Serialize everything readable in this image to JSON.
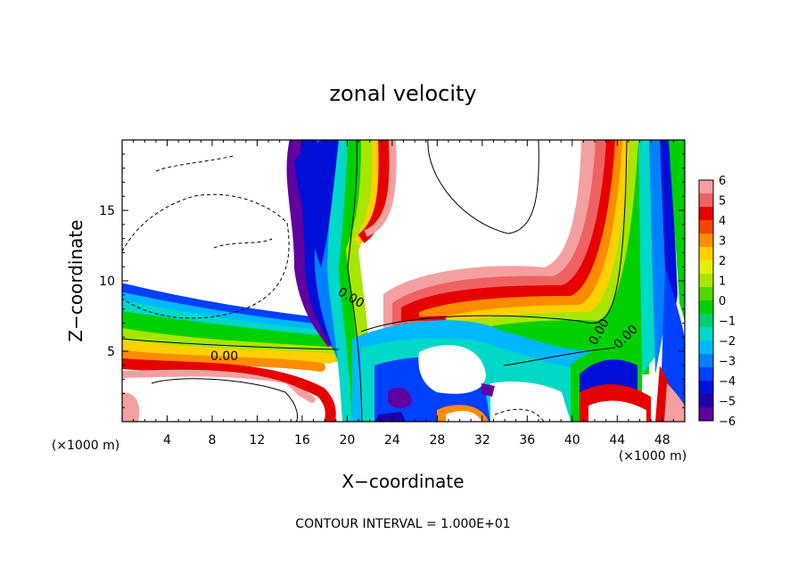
{
  "chart_data": {
    "type": "heatmap",
    "title": "zonal velocity",
    "xlabel": "X−coordinate",
    "ylabel": "Z−coordinate",
    "x_unit_label": "(×1000 m)",
    "y_unit_label": "(×1000 m)",
    "footer": "CONTOUR INTERVAL = 1.000E+01",
    "xlim": [
      0,
      50
    ],
    "ylim": [
      0,
      20
    ],
    "x_ticks": [
      "4",
      "8",
      "12",
      "16",
      "20",
      "24",
      "28",
      "32",
      "36",
      "40",
      "44",
      "48"
    ],
    "y_ticks": [
      "5",
      "10",
      "15"
    ],
    "contour_labels": [
      "0.00",
      "0.00",
      "0.00",
      "0.00"
    ],
    "colorbar": {
      "ticks": [
        "6",
        "5",
        "4",
        "3",
        "2",
        "1",
        "0",
        "−1",
        "−2",
        "−3",
        "−4",
        "−5",
        "−6"
      ],
      "range": [
        -6,
        6
      ],
      "colors": [
        "#f4a0a0",
        "#f06262",
        "#e60000",
        "#f24500",
        "#ff8c00",
        "#ffd000",
        "#e8ee00",
        "#a8e600",
        "#50d800",
        "#00d000",
        "#00d070",
        "#00d8c8",
        "#00b8ff",
        "#0080ff",
        "#0040ff",
        "#0010d8",
        "#2000a8",
        "#6000a0"
      ]
    }
  }
}
